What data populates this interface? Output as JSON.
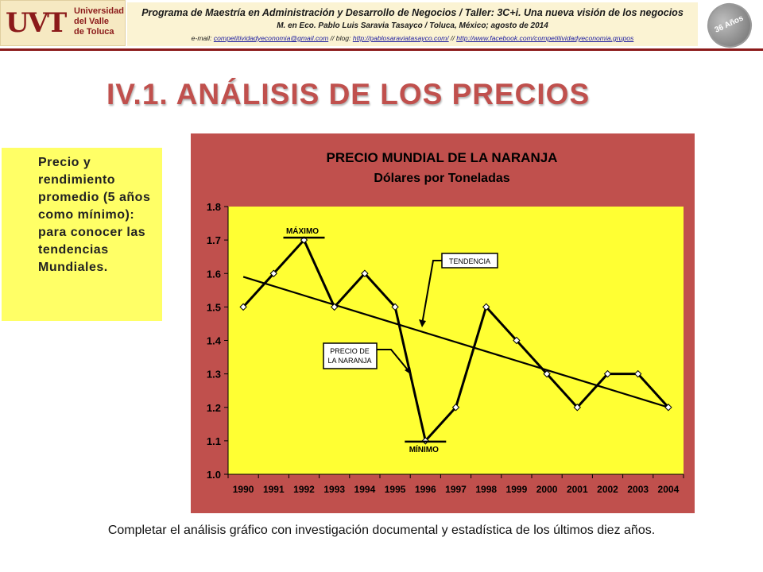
{
  "header": {
    "logo": {
      "mark": "UVT",
      "line1": "Universidad",
      "line2": "del Valle",
      "line3": "de Toluca"
    },
    "line1": "Programa de Maestría en Administración y Desarrollo de Negocios / Taller: 3C+i. Una nueva visión de los negocios",
    "line2": "M. en Eco. Pablo Luis Saravia Tasayco / Toluca, México; agosto de 2014",
    "line3": {
      "prefix": "e-mail: ",
      "email": "competitividadyeconomia@gmail.com",
      "blog_label": " // blog: ",
      "blog": "http://pablosaraviatasayco.com/",
      "sep": " // ",
      "facebook": "http://www.facebook.com/competitividadyeconomia.grupos"
    },
    "badge": "36 Años"
  },
  "title": "IV.1. ANÁLISIS DE LOS PRECIOS",
  "note": "Precio y rendimiento promedio (5 años como mínimo): para conocer las tendencias Mundiales.",
  "footer": "Completar el análisis gráfico con investigación documental y estadística de los últimos diez años.",
  "colors": {
    "frame": "#c0504d",
    "plot": "#ffff33",
    "title_red": "#c0504d",
    "note_bg": "#ffff66"
  },
  "chart_data": {
    "type": "line",
    "title": "PRECIO MUNDIAL DE LA NARANJA",
    "subtitle": "Dólares por Toneladas",
    "categories": [
      "1990",
      "1991",
      "1992",
      "1993",
      "1994",
      "1995",
      "1996",
      "1997",
      "1998",
      "1999",
      "2000",
      "2001",
      "2002",
      "2003",
      "2004"
    ],
    "series": [
      {
        "name": "PRECIO DE LA NARANJA",
        "values": [
          1.5,
          1.6,
          1.7,
          1.5,
          1.6,
          1.5,
          1.1,
          1.2,
          1.5,
          1.4,
          1.3,
          1.2,
          1.3,
          1.3,
          1.2
        ]
      }
    ],
    "trend": {
      "name": "TENDENCIA",
      "start": 1.59,
      "end": 1.2
    },
    "ylim": [
      1.0,
      1.8
    ],
    "yticks": [
      "1.0",
      "1.1",
      "1.2",
      "1.3",
      "1.4",
      "1.5",
      "1.6",
      "1.7",
      "1.8"
    ],
    "grid": false,
    "annotations": {
      "max": {
        "label": "MÁXIMO",
        "year": "1992",
        "value": 1.7
      },
      "min": {
        "label": "MÍNIMO",
        "year": "1996",
        "value": 1.1
      },
      "trend_label": "TENDENCIA",
      "series_label_lines": [
        "PRECIO DE",
        "LA NARANJA"
      ]
    }
  }
}
